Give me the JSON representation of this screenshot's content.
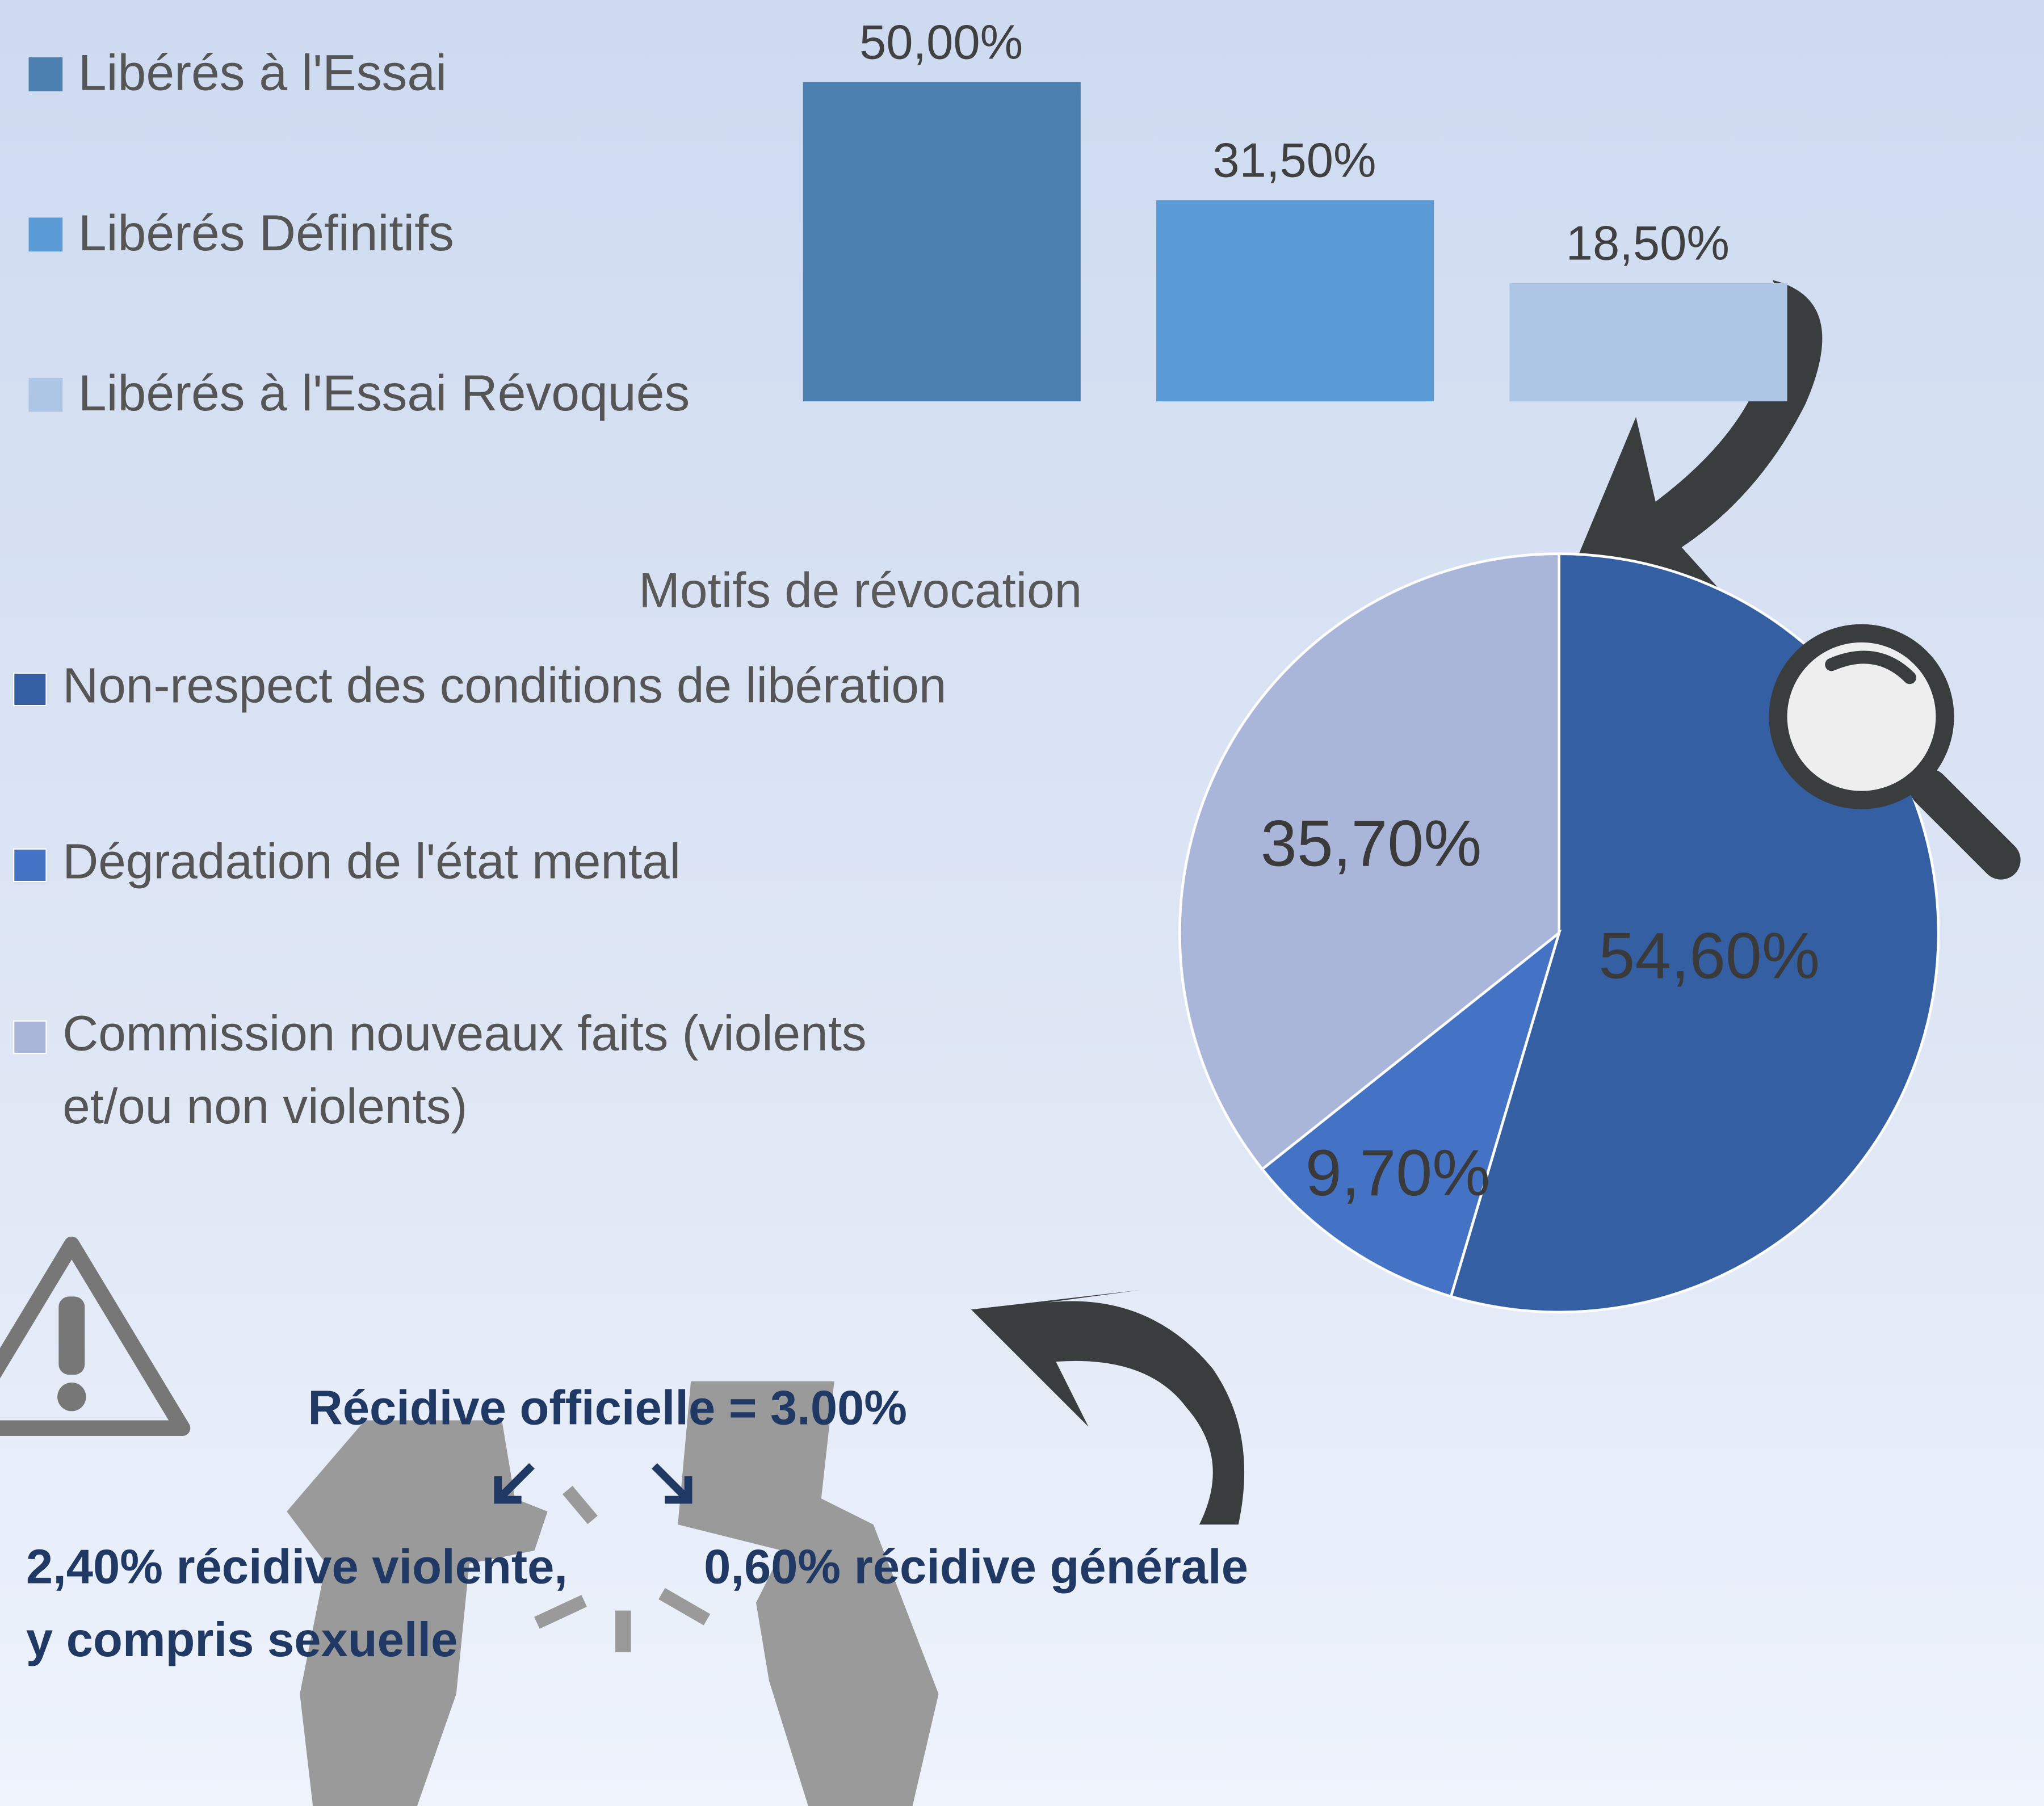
{
  "chart_data": [
    {
      "type": "bar",
      "categories": [
        "Libérés à l'Essai",
        "Libérés Définitifs",
        "Libérés à l'Essai Révoqués"
      ],
      "values": [
        50,
        31.5,
        18.5
      ],
      "value_labels": [
        "50,00%",
        "31,50%",
        "18,50%"
      ],
      "colors": [
        "#4a7fb0",
        "#5b9bd5",
        "#adc6e5"
      ]
    },
    {
      "type": "pie",
      "title": "Motifs de révocation",
      "categories": [
        "Non-respect des conditions de libération",
        "Dégradation de l'état mental",
        "Commission nouveaux faits (violents et/ou non violents)"
      ],
      "values": [
        54.6,
        9.7,
        35.7
      ],
      "value_labels": [
        "54,60%",
        "9,70%",
        "35,70%"
      ],
      "colors": [
        "#355fa3",
        "#4472c4",
        "#a9b6da"
      ]
    }
  ],
  "recidive": {
    "title": "Récidive officielle = 3.00%",
    "left": [
      "2,40% récidive violente,",
      "y compris sexuelle"
    ],
    "right": "0,60% récidive générale"
  }
}
